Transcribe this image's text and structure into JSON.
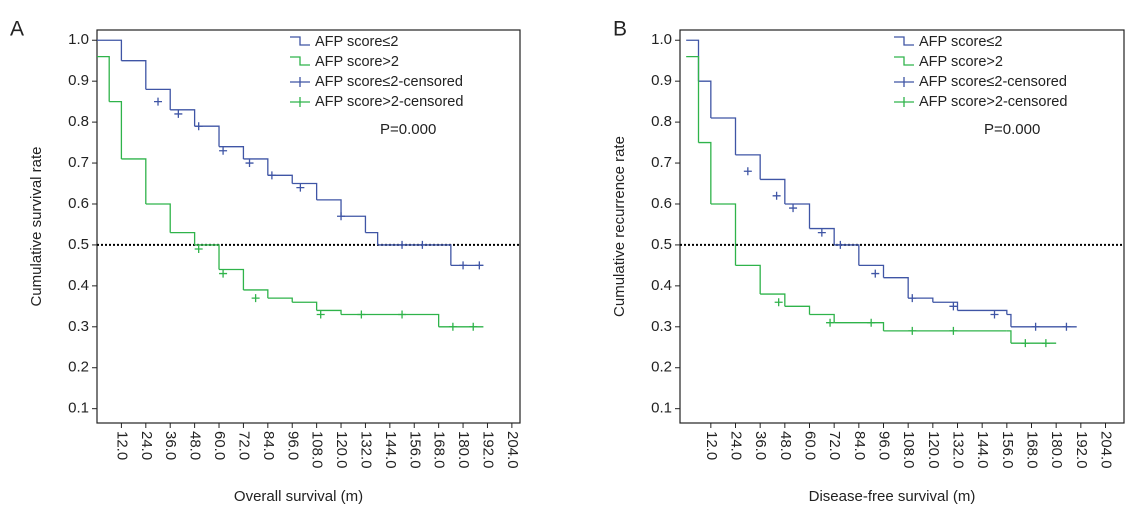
{
  "chart_data": [
    {
      "type": "step",
      "panel_label": "A",
      "xlabel": "Overall survival (m)",
      "ylabel": "Cumulative survival rate",
      "xlim": [
        0,
        208
      ],
      "ylim": [
        0.065,
        1.025
      ],
      "xticks": [
        {
          "value": 12,
          "label": "12.0"
        },
        {
          "value": 24,
          "label": "24.0"
        },
        {
          "value": 36,
          "label": "36.0"
        },
        {
          "value": 48,
          "label": "48.0"
        },
        {
          "value": 60,
          "label": "60.0"
        },
        {
          "value": 72,
          "label": "72.0"
        },
        {
          "value": 84,
          "label": "84.0"
        },
        {
          "value": 96,
          "label": "96.0"
        },
        {
          "value": 108,
          "label": "108.0"
        },
        {
          "value": 120,
          "label": "120.0"
        },
        {
          "value": 132,
          "label": "132.0"
        },
        {
          "value": 144,
          "label": "144.0"
        },
        {
          "value": 156,
          "label": "156.0"
        },
        {
          "value": 168,
          "label": "168.0"
        },
        {
          "value": 180,
          "label": "180.0"
        },
        {
          "value": 192,
          "label": "192.0"
        },
        {
          "value": 204,
          "label": "204.0"
        }
      ],
      "yticks": [
        0.1,
        0.2,
        0.3,
        0.4,
        0.5,
        0.6,
        0.7,
        0.8,
        0.9,
        {
          "value": 1,
          "label": "1.0"
        }
      ],
      "hline": 0.5,
      "annotation": "P=0.000",
      "legend": "upper right",
      "series": [
        {
          "name": "AFP score≤2",
          "color": "#3f55a5",
          "style": "step",
          "x": [
            0,
            12,
            24,
            36,
            48,
            60,
            72,
            84,
            96,
            108,
            120,
            132,
            138,
            168,
            174,
            190
          ],
          "values": [
            1.0,
            0.95,
            0.88,
            0.83,
            0.79,
            0.74,
            0.71,
            0.67,
            0.65,
            0.61,
            0.57,
            0.53,
            0.5,
            0.5,
            0.45,
            0.45
          ]
        },
        {
          "name": "AFP score>2",
          "color": "#2fb34a",
          "style": "step",
          "x": [
            0,
            6,
            12,
            24,
            36,
            48,
            60,
            72,
            84,
            96,
            108,
            120,
            168,
            190
          ],
          "values": [
            0.96,
            0.85,
            0.71,
            0.6,
            0.53,
            0.5,
            0.44,
            0.39,
            0.37,
            0.36,
            0.34,
            0.33,
            0.3,
            0.3
          ]
        },
        {
          "name": "AFP score≤2-censored",
          "color": "#3f55a5",
          "style": "censored",
          "x": [
            30,
            40,
            50,
            62,
            75,
            86,
            100,
            120,
            150,
            160,
            180,
            188
          ],
          "values": [
            0.85,
            0.82,
            0.79,
            0.73,
            0.7,
            0.67,
            0.64,
            0.57,
            0.5,
            0.5,
            0.45,
            0.45
          ]
        },
        {
          "name": "AFP score>2-censored",
          "color": "#2fb34a",
          "style": "censored",
          "x": [
            50,
            62,
            78,
            110,
            130,
            150,
            175,
            185
          ],
          "values": [
            0.49,
            0.43,
            0.37,
            0.33,
            0.33,
            0.33,
            0.3,
            0.3
          ]
        }
      ]
    },
    {
      "type": "step",
      "panel_label": "B",
      "xlabel": "Disease-free survival (m)",
      "ylabel": "Cumulative recurrence rate",
      "xlim": [
        -3,
        213
      ],
      "ylim": [
        0.065,
        1.025
      ],
      "xticks": [
        {
          "value": 12,
          "label": "12.0"
        },
        {
          "value": 24,
          "label": "24.0"
        },
        {
          "value": 36,
          "label": "36.0"
        },
        {
          "value": 48,
          "label": "48.0"
        },
        {
          "value": 60,
          "label": "60.0"
        },
        {
          "value": 72,
          "label": "72.0"
        },
        {
          "value": 84,
          "label": "84.0"
        },
        {
          "value": 96,
          "label": "96.0"
        },
        {
          "value": 108,
          "label": "108.0"
        },
        {
          "value": 120,
          "label": "120.0"
        },
        {
          "value": 132,
          "label": "132.0"
        },
        {
          "value": 144,
          "label": "144.0"
        },
        {
          "value": 156,
          "label": "156.0"
        },
        {
          "value": 168,
          "label": "168.0"
        },
        {
          "value": 180,
          "label": "180.0"
        },
        {
          "value": 192,
          "label": "192.0"
        },
        {
          "value": 204,
          "label": "204.0"
        }
      ],
      "yticks": [
        0.1,
        0.2,
        0.3,
        0.4,
        0.5,
        0.6,
        0.7,
        0.8,
        0.9,
        {
          "value": 1,
          "label": "1.0"
        }
      ],
      "hline": 0.5,
      "annotation": "P=0.000",
      "legend": "upper right",
      "series": [
        {
          "name": "AFP score≤2",
          "color": "#3f55a5",
          "style": "step",
          "x": [
            0,
            6,
            12,
            24,
            36,
            48,
            60,
            72,
            84,
            96,
            108,
            120,
            132,
            156,
            158,
            190
          ],
          "values": [
            1.0,
            0.9,
            0.81,
            0.72,
            0.66,
            0.6,
            0.54,
            0.5,
            0.45,
            0.42,
            0.37,
            0.36,
            0.34,
            0.33,
            0.3,
            0.3
          ]
        },
        {
          "name": "AFP score>2",
          "color": "#2fb34a",
          "style": "step",
          "x": [
            0,
            6,
            12,
            24,
            36,
            48,
            60,
            72,
            96,
            156,
            158,
            180
          ],
          "values": [
            0.96,
            0.75,
            0.6,
            0.45,
            0.38,
            0.35,
            0.33,
            0.31,
            0.29,
            0.29,
            0.26,
            0.26
          ]
        },
        {
          "name": "AFP score≤2-censored",
          "color": "#3f55a5",
          "style": "censored",
          "x": [
            30,
            44,
            52,
            66,
            75,
            92,
            110,
            130,
            150,
            170,
            185
          ],
          "values": [
            0.68,
            0.62,
            0.59,
            0.53,
            0.5,
            0.43,
            0.37,
            0.35,
            0.33,
            0.3,
            0.3
          ]
        },
        {
          "name": "AFP score>2-censored",
          "color": "#2fb34a",
          "style": "censored",
          "x": [
            45,
            70,
            90,
            110,
            130,
            165,
            175
          ],
          "values": [
            0.36,
            0.31,
            0.31,
            0.29,
            0.29,
            0.26,
            0.26
          ]
        }
      ]
    }
  ]
}
